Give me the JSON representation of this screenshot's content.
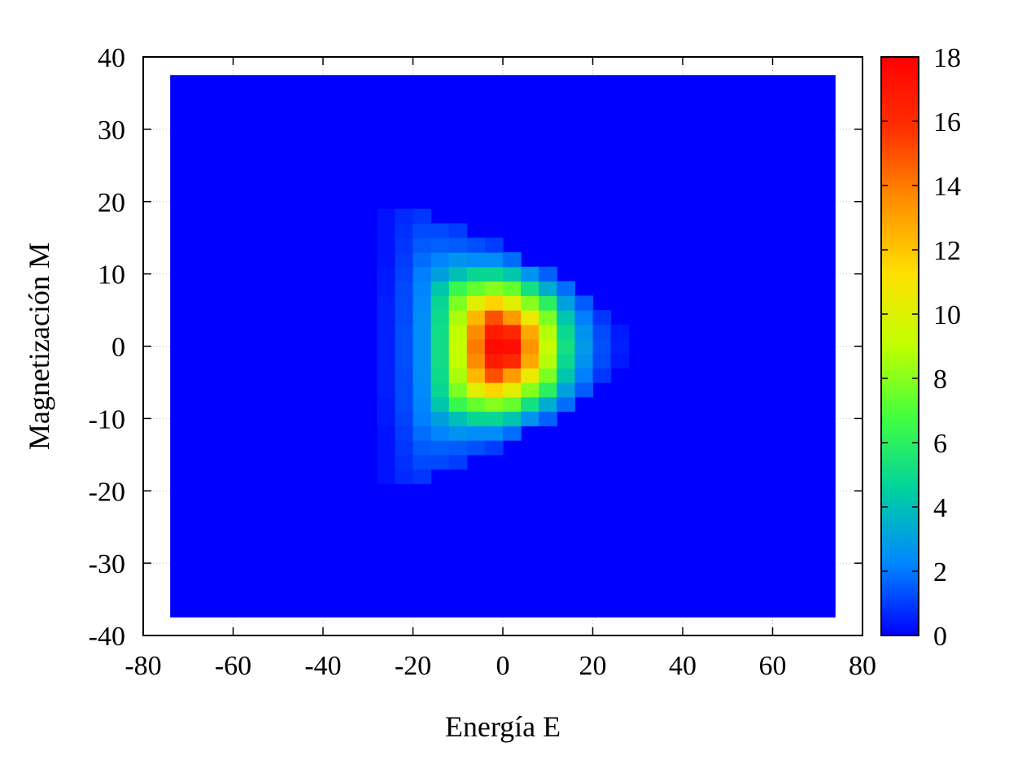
{
  "chart_data": {
    "type": "heatmap",
    "xlabel": "Energía E",
    "ylabel": "Magnetización M",
    "xlim": [
      -80,
      80
    ],
    "ylim": [
      -40,
      40
    ],
    "x_ticks": [
      "-80",
      "-60",
      "-40",
      "-20",
      "0",
      "20",
      "40",
      "60",
      "80"
    ],
    "y_ticks": [
      "-40",
      "-30",
      "-20",
      "-10",
      "0",
      "10",
      "20",
      "30",
      "40"
    ],
    "grid": true,
    "colorbar": {
      "range": [
        0,
        18
      ],
      "ticks": [
        "0",
        "2",
        "4",
        "6",
        "8",
        "10",
        "12",
        "14",
        "16",
        "18"
      ],
      "palette": [
        "#0000ff",
        "#0088ff",
        "#00d0a0",
        "#40ff40",
        "#c0ff00",
        "#ffe000",
        "#ff9000",
        "#ff3000",
        "#ff0000"
      ]
    },
    "data_extent": {
      "x": [
        -74,
        74
      ],
      "y": [
        -37.5,
        37.5
      ]
    },
    "cell_size": {
      "x": 4,
      "y": 2
    },
    "cells": [
      [
        -26,
        -18,
        0.3
      ],
      [
        -26,
        -16,
        0.3
      ],
      [
        -26,
        -14,
        0.3
      ],
      [
        -26,
        -12,
        0.3
      ],
      [
        -26,
        -10,
        0.4
      ],
      [
        -26,
        -8,
        0.4
      ],
      [
        -26,
        -6,
        0.5
      ],
      [
        -26,
        -4,
        0.5
      ],
      [
        -26,
        -2,
        0.5
      ],
      [
        -26,
        0,
        0.5
      ],
      [
        -26,
        2,
        0.5
      ],
      [
        -26,
        4,
        0.5
      ],
      [
        -26,
        6,
        0.5
      ],
      [
        -26,
        8,
        0.4
      ],
      [
        -26,
        10,
        0.4
      ],
      [
        -26,
        12,
        0.3
      ],
      [
        -26,
        14,
        0.3
      ],
      [
        -26,
        16,
        0.3
      ],
      [
        -26,
        18,
        0.3
      ],
      [
        -22,
        -18,
        0.7
      ],
      [
        -22,
        -16,
        0.8
      ],
      [
        -22,
        -14,
        0.9
      ],
      [
        -22,
        -12,
        1.0
      ],
      [
        -22,
        -10,
        1.1
      ],
      [
        -22,
        -8,
        1.2
      ],
      [
        -22,
        -6,
        1.2
      ],
      [
        -22,
        -4,
        1.2
      ],
      [
        -22,
        -2,
        1.3
      ],
      [
        -22,
        0,
        1.3
      ],
      [
        -22,
        2,
        1.3
      ],
      [
        -22,
        4,
        1.2
      ],
      [
        -22,
        6,
        1.2
      ],
      [
        -22,
        8,
        1.2
      ],
      [
        -22,
        10,
        1.1
      ],
      [
        -22,
        12,
        1.0
      ],
      [
        -22,
        14,
        0.9
      ],
      [
        -22,
        16,
        0.8
      ],
      [
        -22,
        18,
        0.7
      ],
      [
        -18,
        -18,
        0.9
      ],
      [
        -18,
        -16,
        1.2
      ],
      [
        -18,
        -14,
        1.5
      ],
      [
        -18,
        -12,
        1.8
      ],
      [
        -18,
        -10,
        2.1
      ],
      [
        -18,
        -8,
        2.2
      ],
      [
        -18,
        -6,
        2.3
      ],
      [
        -18,
        -4,
        2.4
      ],
      [
        -18,
        -2,
        2.4
      ],
      [
        -18,
        0,
        2.4
      ],
      [
        -18,
        2,
        2.4
      ],
      [
        -18,
        4,
        2.4
      ],
      [
        -18,
        6,
        2.3
      ],
      [
        -18,
        8,
        2.2
      ],
      [
        -18,
        10,
        2.1
      ],
      [
        -18,
        12,
        1.8
      ],
      [
        -18,
        14,
        1.5
      ],
      [
        -18,
        16,
        1.2
      ],
      [
        -18,
        18,
        0.9
      ],
      [
        -14,
        -16,
        1.2
      ],
      [
        -14,
        -14,
        1.6
      ],
      [
        -14,
        -12,
        2.2
      ],
      [
        -14,
        -10,
        3.0
      ],
      [
        -14,
        -8,
        4.2
      ],
      [
        -14,
        -6,
        4.8
      ],
      [
        -14,
        -4,
        5.0
      ],
      [
        -14,
        -2,
        5.1
      ],
      [
        -14,
        0,
        5.1
      ],
      [
        -14,
        2,
        5.1
      ],
      [
        -14,
        4,
        5.0
      ],
      [
        -14,
        6,
        4.8
      ],
      [
        -14,
        8,
        4.2
      ],
      [
        -14,
        10,
        3.0
      ],
      [
        -14,
        12,
        2.2
      ],
      [
        -14,
        14,
        1.6
      ],
      [
        -14,
        16,
        1.2
      ],
      [
        -10,
        -16,
        1.0
      ],
      [
        -10,
        -14,
        1.5
      ],
      [
        -10,
        -12,
        2.6
      ],
      [
        -10,
        -10,
        4.0
      ],
      [
        -10,
        -8,
        6.4
      ],
      [
        -10,
        -6,
        7.8
      ],
      [
        -10,
        -4,
        8.6
      ],
      [
        -10,
        -2,
        9.0
      ],
      [
        -10,
        0,
        9.2
      ],
      [
        -10,
        2,
        9.0
      ],
      [
        -10,
        4,
        8.6
      ],
      [
        -10,
        6,
        7.8
      ],
      [
        -10,
        8,
        6.4
      ],
      [
        -10,
        10,
        4.0
      ],
      [
        -10,
        12,
        2.6
      ],
      [
        -10,
        14,
        1.5
      ],
      [
        -10,
        16,
        1.0
      ],
      [
        -6,
        -14,
        1.3
      ],
      [
        -6,
        -12,
        2.4
      ],
      [
        -6,
        -10,
        4.8
      ],
      [
        -6,
        -8,
        7.4
      ],
      [
        -6,
        -6,
        10.2
      ],
      [
        -6,
        -4,
        12.4
      ],
      [
        -6,
        -2,
        13.6
      ],
      [
        -6,
        0,
        14.0
      ],
      [
        -6,
        2,
        13.6
      ],
      [
        -6,
        4,
        12.4
      ],
      [
        -6,
        6,
        10.2
      ],
      [
        -6,
        8,
        7.4
      ],
      [
        -6,
        10,
        4.8
      ],
      [
        -6,
        12,
        2.4
      ],
      [
        -6,
        14,
        1.3
      ],
      [
        -2,
        -14,
        1.0
      ],
      [
        -2,
        -12,
        2.4
      ],
      [
        -2,
        -10,
        4.8
      ],
      [
        -2,
        -8,
        8.0
      ],
      [
        -2,
        -6,
        11.6
      ],
      [
        -2,
        -4,
        15.0
      ],
      [
        -2,
        -2,
        16.8
      ],
      [
        -2,
        0,
        17.6
      ],
      [
        -2,
        2,
        16.8
      ],
      [
        -2,
        4,
        15.0
      ],
      [
        -2,
        6,
        11.6
      ],
      [
        -2,
        8,
        8.0
      ],
      [
        -2,
        10,
        4.8
      ],
      [
        -2,
        12,
        2.4
      ],
      [
        -2,
        14,
        1.0
      ],
      [
        2,
        -12,
        1.8
      ],
      [
        2,
        -10,
        4.2
      ],
      [
        2,
        -8,
        7.4
      ],
      [
        2,
        -6,
        10.2
      ],
      [
        2,
        -4,
        13.2
      ],
      [
        2,
        -2,
        16.2
      ],
      [
        2,
        0,
        17.4
      ],
      [
        2,
        2,
        16.2
      ],
      [
        2,
        4,
        13.2
      ],
      [
        2,
        6,
        10.2
      ],
      [
        2,
        8,
        7.4
      ],
      [
        2,
        10,
        4.2
      ],
      [
        2,
        12,
        1.8
      ],
      [
        6,
        -10,
        2.6
      ],
      [
        6,
        -8,
        5.2
      ],
      [
        6,
        -6,
        8.0
      ],
      [
        6,
        -4,
        10.6
      ],
      [
        6,
        -2,
        12.8
      ],
      [
        6,
        0,
        13.4
      ],
      [
        6,
        2,
        12.8
      ],
      [
        6,
        4,
        10.6
      ],
      [
        6,
        6,
        8.0
      ],
      [
        6,
        8,
        5.2
      ],
      [
        6,
        10,
        2.6
      ],
      [
        10,
        -10,
        1.6
      ],
      [
        10,
        -8,
        3.4
      ],
      [
        10,
        -6,
        6.0
      ],
      [
        10,
        -4,
        7.8
      ],
      [
        10,
        -2,
        8.8
      ],
      [
        10,
        0,
        9.2
      ],
      [
        10,
        2,
        8.8
      ],
      [
        10,
        4,
        7.8
      ],
      [
        10,
        6,
        6.0
      ],
      [
        10,
        8,
        3.4
      ],
      [
        10,
        10,
        1.6
      ],
      [
        14,
        -8,
        1.8
      ],
      [
        14,
        -6,
        3.0
      ],
      [
        14,
        -4,
        4.2
      ],
      [
        14,
        -2,
        4.9
      ],
      [
        14,
        0,
        5.2
      ],
      [
        14,
        2,
        4.9
      ],
      [
        14,
        4,
        4.2
      ],
      [
        14,
        6,
        3.0
      ],
      [
        14,
        8,
        1.8
      ],
      [
        18,
        -6,
        1.5
      ],
      [
        18,
        -4,
        2.1
      ],
      [
        18,
        -2,
        2.6
      ],
      [
        18,
        0,
        2.8
      ],
      [
        18,
        2,
        2.6
      ],
      [
        18,
        4,
        2.1
      ],
      [
        18,
        6,
        1.5
      ],
      [
        22,
        -4,
        0.9
      ],
      [
        22,
        -2,
        1.2
      ],
      [
        22,
        0,
        1.3
      ],
      [
        22,
        2,
        1.2
      ],
      [
        22,
        4,
        0.9
      ],
      [
        26,
        -2,
        0.4
      ],
      [
        26,
        0,
        0.5
      ],
      [
        26,
        2,
        0.4
      ]
    ]
  }
}
